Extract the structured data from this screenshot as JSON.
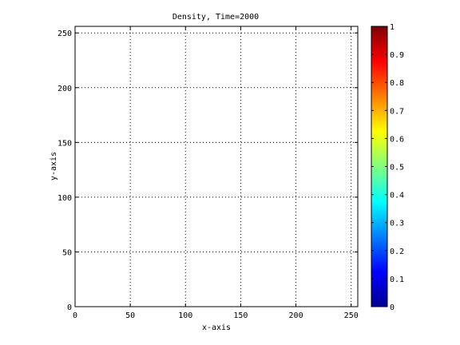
{
  "chart_data": {
    "type": "heatmap",
    "title": "Density, Time=2000",
    "xlabel": "x-axis",
    "ylabel": "y-axis",
    "xlim": [
      0,
      256
    ],
    "ylim": [
      0,
      256
    ],
    "x_ticks": [
      0,
      50,
      100,
      150,
      200,
      250
    ],
    "y_ticks": [
      0,
      50,
      100,
      150,
      200,
      250
    ],
    "x_tick_labels": [
      "0",
      "50",
      "100",
      "150",
      "200",
      "250"
    ],
    "y_tick_labels": [
      "0",
      "50",
      "100",
      "150",
      "200",
      "250"
    ],
    "grid": true,
    "grid_style": "dotted",
    "plot_background": "#ffffff",
    "colorbar": {
      "colormap": "jet",
      "range": [
        0,
        1
      ],
      "ticks": [
        0,
        0.1,
        0.2,
        0.3,
        0.4,
        0.5,
        0.6,
        0.7,
        0.8,
        0.9,
        1
      ],
      "tick_labels": [
        "0",
        "0.1",
        "0.2",
        "0.3",
        "0.4",
        "0.5",
        "0.6",
        "0.7",
        "0.8",
        "0.9",
        "1"
      ],
      "placement": "right"
    },
    "values": []
  }
}
